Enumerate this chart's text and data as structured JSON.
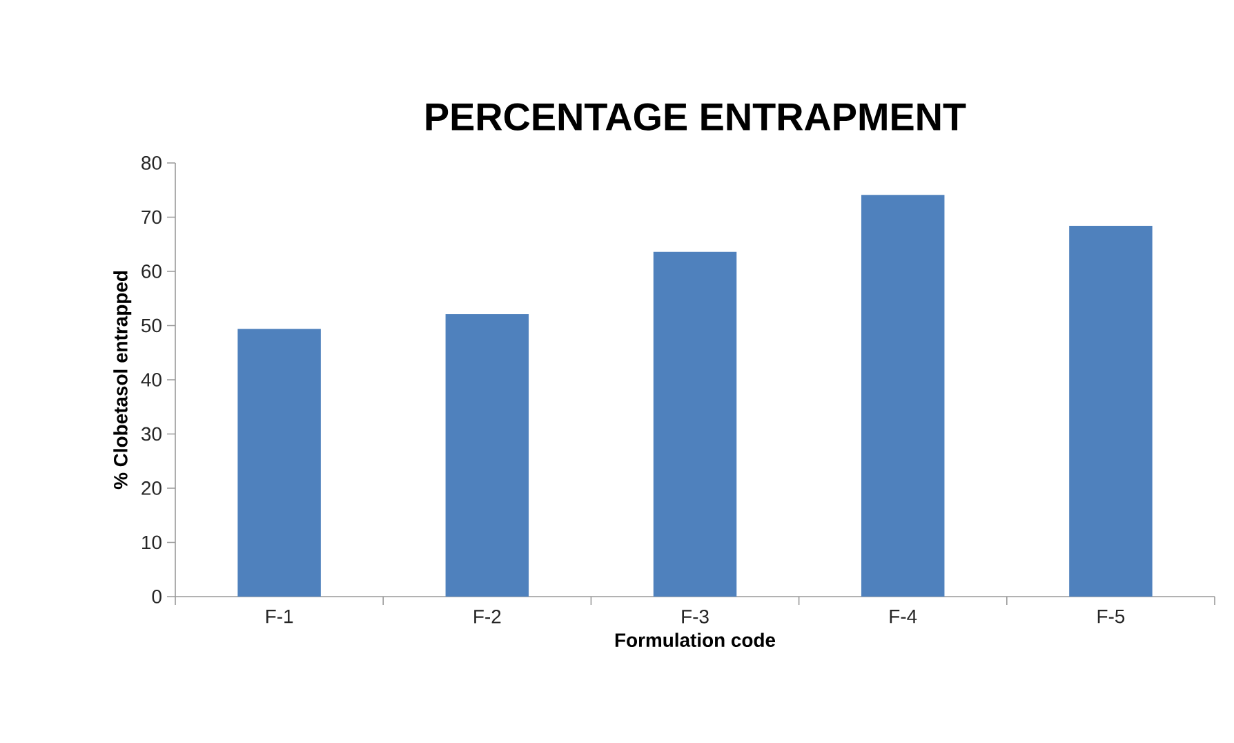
{
  "chart_data": {
    "type": "bar",
    "title": "PERCENTAGE ENTRAPMENT",
    "xlabel": "Formulation code",
    "ylabel": "% Clobetasol entrapped",
    "categories": [
      "F-1",
      "F-2",
      "F-3",
      "F-4",
      "F-5"
    ],
    "values": [
      49.4,
      52.1,
      63.6,
      74.1,
      68.4
    ],
    "color": "#4f81bd",
    "ylim": [
      0,
      80
    ],
    "yticks": [
      0,
      10,
      20,
      30,
      40,
      50,
      60,
      70,
      80
    ]
  }
}
